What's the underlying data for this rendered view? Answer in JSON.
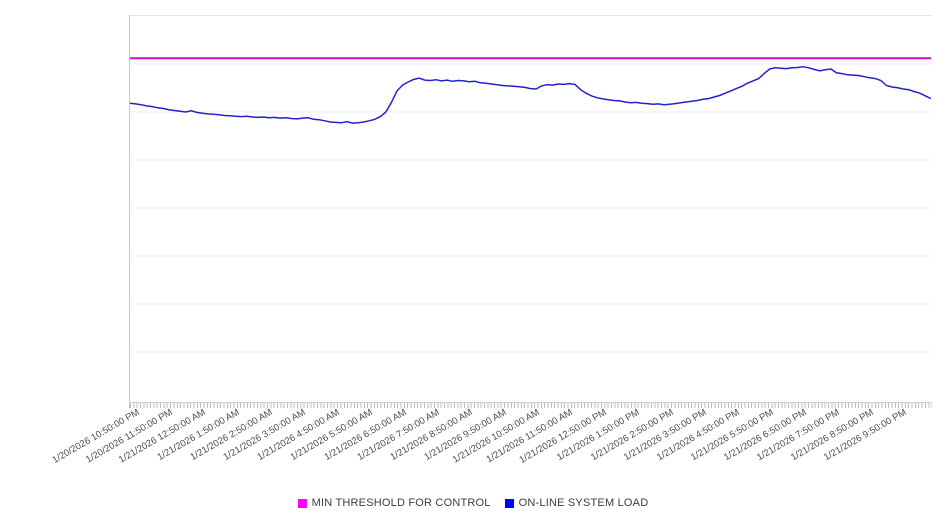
{
  "chart_data": {
    "type": "line",
    "title": "",
    "x_axis": {
      "labels": [
        "1/20/2026 10:50:00 PM",
        "1/20/2026 11:50:00 PM",
        "1/21/2026 12:50:00 AM",
        "1/21/2026 1:50:00 AM",
        "1/21/2026 2:50:00 AM",
        "1/21/2026 3:50:00 AM",
        "1/21/2026 4:50:00 AM",
        "1/21/2026 5:50:00 AM",
        "1/21/2026 6:50:00 AM",
        "1/21/2026 7:50:00 AM",
        "1/21/2026 8:50:00 AM",
        "1/21/2026 9:50:00 AM",
        "1/21/2026 10:50:00 AM",
        "1/21/2026 11:50:00 AM",
        "1/21/2026 12:50:00 PM",
        "1/21/2026 1:50:00 PM",
        "1/21/2026 2:50:00 PM",
        "1/21/2026 3:50:00 PM",
        "1/21/2026 4:50:00 PM",
        "1/21/2026 5:50:00 PM",
        "1/21/2026 6:50:00 PM",
        "1/21/2026 7:50:00 PM",
        "1/21/2026 8:50:00 PM",
        "1/21/2026 9:50:00 PM"
      ],
      "label_rotation_deg": -30,
      "label_interval_minutes": 60,
      "data_interval_minutes": 10,
      "first_label_data_index": 1,
      "label_every_n_points": 6,
      "minor_ticks_visible": true
    },
    "y_axis": {
      "tick_labels_visible": false,
      "implied_scale_note": "no y-axis labels shown; series values are percent of plot height (0-100)",
      "ylim": [
        0,
        100
      ],
      "gridline_divisions": 8,
      "grid_on": true
    },
    "legend": {
      "position": "bottom-center"
    },
    "series": [
      {
        "name": "MIN THRESHOLD FOR CONTROL",
        "type": "constant-line",
        "value": 89,
        "color": "#c411c4",
        "legend_color": "#ff00ff",
        "stroke_width": 2
      },
      {
        "name": "ON-LINE SYSTEM LOAD",
        "type": "line",
        "color": "#2222cc",
        "legend_color": "#0000ff",
        "stroke_width": 1.5,
        "values": [
          77.3,
          77.1,
          76.9,
          76.6,
          76.4,
          76.1,
          75.9,
          75.6,
          75.4,
          75.2,
          75.0,
          75.3,
          74.9,
          74.7,
          74.5,
          74.4,
          74.3,
          74.1,
          74.0,
          73.9,
          73.8,
          73.9,
          73.7,
          73.6,
          73.7,
          73.5,
          73.6,
          73.4,
          73.5,
          73.3,
          73.2,
          73.4,
          73.5,
          73.1,
          73.0,
          72.7,
          72.4,
          72.3,
          72.2,
          72.5,
          72.1,
          72.2,
          72.4,
          72.7,
          73.1,
          73.8,
          75.0,
          77.5,
          80.5,
          82.0,
          82.8,
          83.5,
          83.8,
          83.3,
          83.2,
          83.4,
          83.1,
          83.3,
          83.0,
          83.2,
          83.1,
          82.9,
          83.0,
          82.6,
          82.5,
          82.3,
          82.1,
          81.9,
          81.8,
          81.7,
          81.6,
          81.4,
          81.1,
          81.0,
          81.8,
          82.1,
          82.0,
          82.3,
          82.2,
          82.4,
          82.2,
          80.8,
          79.9,
          79.2,
          78.7,
          78.4,
          78.2,
          78.0,
          77.9,
          77.6,
          77.4,
          77.5,
          77.3,
          77.2,
          77.0,
          77.1,
          76.9,
          77.0,
          77.2,
          77.4,
          77.6,
          77.8,
          78.0,
          78.3,
          78.5,
          78.9,
          79.3,
          79.9,
          80.5,
          81.1,
          81.7,
          82.5,
          83.1,
          83.7,
          85.0,
          86.2,
          86.5,
          86.4,
          86.3,
          86.5,
          86.6,
          86.8,
          86.5,
          86.1,
          85.7,
          86.0,
          86.2,
          85.2,
          85.0,
          84.7,
          84.6,
          84.5,
          84.2,
          83.9,
          83.7,
          83.2,
          81.9,
          81.5,
          81.3,
          81.0,
          80.8,
          80.3,
          79.9,
          79.2,
          78.5
        ]
      }
    ],
    "plot_colors": {
      "background": "#ffffff",
      "gridline": "#ededed",
      "plot_border_top": "#e4e4e4",
      "plot_border_left": "#c9c9c9",
      "axis_tick": "#bdbdbd",
      "x_label_text": "#4d4d4d",
      "legend_text": "#3d3d3d"
    }
  }
}
